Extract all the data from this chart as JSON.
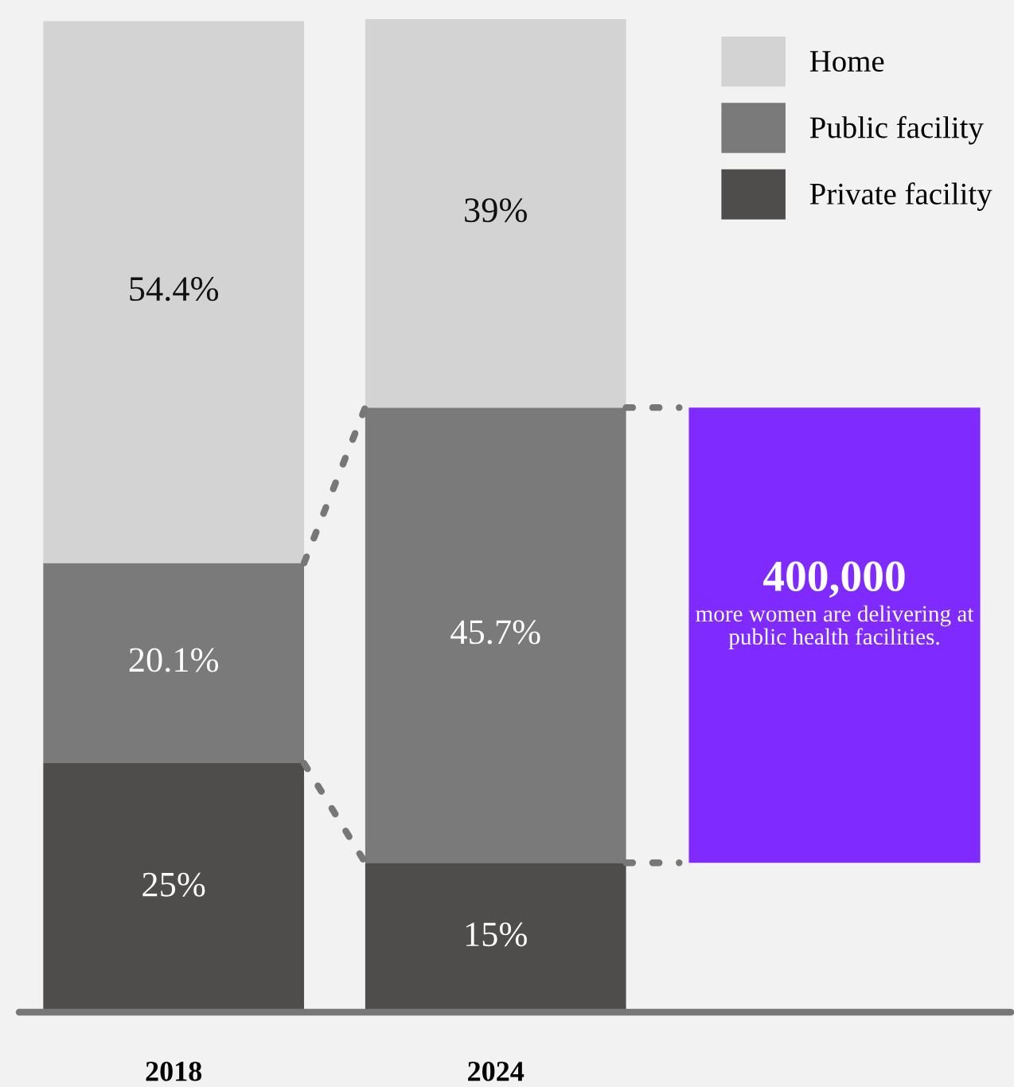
{
  "chart_data": {
    "type": "bar",
    "stacked": true,
    "categories": [
      "2018",
      "2024"
    ],
    "series": [
      {
        "name": "Private facility",
        "color": "#4f4c4c",
        "values": [
          25,
          15
        ],
        "value_labels": [
          "25%",
          "15%"
        ]
      },
      {
        "name": "Public facility",
        "color": "#7a7a7a",
        "values": [
          20.1,
          45.7
        ],
        "value_labels": [
          "20.1%",
          "45.7%"
        ]
      },
      {
        "name": "Home",
        "color": "#d3d3d3",
        "values": [
          54.4,
          39
        ],
        "value_labels": [
          "54.4%",
          "39%"
        ]
      }
    ],
    "legend": "top right",
    "annotations": [
      "400,000",
      "more women are delivering at public health facilities."
    ]
  }
}
